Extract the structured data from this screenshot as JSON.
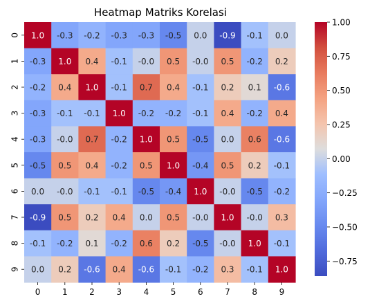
{
  "chart_data": {
    "type": "heatmap",
    "title": "Heatmap Matriks Korelasi",
    "xlabel": "",
    "ylabel": "",
    "x_categories": [
      "0",
      "1",
      "2",
      "3",
      "4",
      "5",
      "6",
      "7",
      "8",
      "9"
    ],
    "y_categories": [
      "0",
      "1",
      "2",
      "3",
      "4",
      "5",
      "6",
      "7",
      "8",
      "9"
    ],
    "values": [
      [
        1.0,
        -0.3,
        -0.2,
        -0.3,
        -0.3,
        -0.5,
        0.0,
        -0.9,
        -0.1,
        0.0
      ],
      [
        -0.3,
        1.0,
        0.4,
        -0.1,
        -0.0,
        0.5,
        -0.0,
        0.5,
        -0.2,
        0.2
      ],
      [
        -0.2,
        0.4,
        1.0,
        -0.1,
        0.7,
        0.4,
        -0.1,
        0.2,
        0.1,
        -0.6
      ],
      [
        -0.3,
        -0.1,
        -0.1,
        1.0,
        -0.2,
        -0.2,
        -0.1,
        0.4,
        -0.2,
        0.4
      ],
      [
        -0.3,
        -0.0,
        0.7,
        -0.2,
        1.0,
        0.5,
        -0.5,
        0.0,
        0.6,
        -0.6
      ],
      [
        -0.5,
        0.5,
        0.4,
        -0.2,
        0.5,
        1.0,
        -0.4,
        0.5,
        0.2,
        -0.1
      ],
      [
        0.0,
        -0.0,
        -0.1,
        -0.1,
        -0.5,
        -0.4,
        1.0,
        -0.0,
        -0.5,
        -0.2
      ],
      [
        -0.9,
        0.5,
        0.2,
        0.4,
        0.0,
        0.5,
        -0.0,
        1.0,
        -0.0,
        0.3
      ],
      [
        -0.1,
        -0.2,
        0.1,
        -0.2,
        0.6,
        0.2,
        -0.5,
        -0.0,
        1.0,
        -0.1
      ],
      [
        0.0,
        0.2,
        -0.6,
        0.4,
        -0.6,
        -0.1,
        -0.2,
        0.3,
        -0.1,
        1.0
      ]
    ],
    "value_labels": [
      [
        "1.0",
        "-0.3",
        "-0.2",
        "-0.3",
        "-0.3",
        "-0.5",
        "0.0",
        "-0.9",
        "-0.1",
        "0.0"
      ],
      [
        "-0.3",
        "1.0",
        "0.4",
        "-0.1",
        "-0.0",
        "0.5",
        "-0.0",
        "0.5",
        "-0.2",
        "0.2"
      ],
      [
        "-0.2",
        "0.4",
        "1.0",
        "-0.1",
        "0.7",
        "0.4",
        "-0.1",
        "0.2",
        "0.1",
        "-0.6"
      ],
      [
        "-0.3",
        "-0.1",
        "-0.1",
        "1.0",
        "-0.2",
        "-0.2",
        "-0.1",
        "0.4",
        "-0.2",
        "0.4"
      ],
      [
        "-0.3",
        "-0.0",
        "0.7",
        "-0.2",
        "1.0",
        "0.5",
        "-0.5",
        "0.0",
        "0.6",
        "-0.6"
      ],
      [
        "-0.5",
        "0.5",
        "0.4",
        "-0.2",
        "0.5",
        "1.0",
        "-0.4",
        "0.5",
        "0.2",
        "-0.1"
      ],
      [
        "0.0",
        "-0.0",
        "-0.1",
        "-0.1",
        "-0.5",
        "-0.4",
        "1.0",
        "-0.0",
        "-0.5",
        "-0.2"
      ],
      [
        "-0.9",
        "0.5",
        "0.2",
        "0.4",
        "0.0",
        "0.5",
        "-0.0",
        "1.0",
        "-0.0",
        "0.3"
      ],
      [
        "-0.1",
        "-0.2",
        "0.1",
        "-0.2",
        "0.6",
        "0.2",
        "-0.5",
        "-0.0",
        "1.0",
        "-0.1"
      ],
      [
        "0.0",
        "0.2",
        "-0.6",
        "0.4",
        "-0.6",
        "-0.1",
        "-0.2",
        "0.3",
        "-0.1",
        "1.0"
      ]
    ],
    "colormap": "coolwarm",
    "vmin": -0.86,
    "vmax": 1.0,
    "colorbar_ticks": [
      1.0,
      0.75,
      0.5,
      0.25,
      0.0,
      -0.25,
      -0.5,
      -0.75
    ],
    "colorbar_tick_labels": [
      "1.00",
      "0.75",
      "0.50",
      "0.25",
      "0.00",
      "−0.25",
      "−0.50",
      "−0.75"
    ],
    "annotated": true,
    "grid": false
  }
}
